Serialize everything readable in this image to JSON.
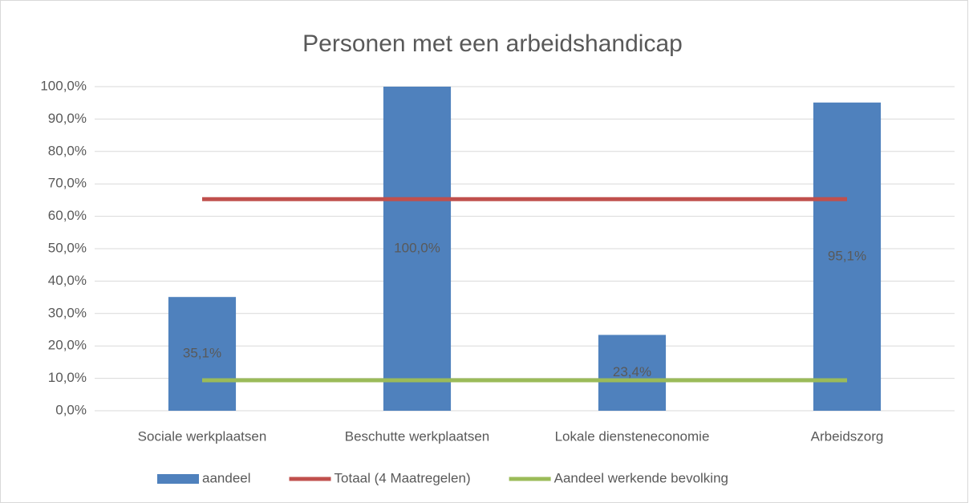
{
  "chart_data": {
    "type": "bar",
    "title": "Personen met een arbeidshandicap",
    "categories": [
      "Sociale werkplaatsen",
      "Beschutte werkplaatsen",
      "Lokale diensteneconomie",
      "Arbeidszorg"
    ],
    "series": [
      {
        "name": "aandeel",
        "type": "bar",
        "color": "#4f81bd",
        "values": [
          35.1,
          100,
          23.4,
          95.1
        ],
        "value_labels": [
          "35,1%",
          "100,0%",
          "23,4%",
          "95,1%"
        ]
      },
      {
        "name": "Totaal (4 Maatregelen)",
        "type": "line",
        "color": "#c0504d",
        "values": [
          65.3,
          65.3,
          65.3,
          65.3
        ]
      },
      {
        "name": "Aandeel werkende bevolking",
        "type": "line",
        "color": "#9bbb59",
        "values": [
          9.4,
          9.4,
          9.4,
          9.4
        ]
      }
    ],
    "ylim": [
      0,
      100
    ],
    "yticks": [
      {
        "value": 0,
        "label": "0,0%"
      },
      {
        "value": 10,
        "label": "10,0%"
      },
      {
        "value": 20,
        "label": "20,0%"
      },
      {
        "value": 30,
        "label": "30,0%"
      },
      {
        "value": 40,
        "label": "40,0%"
      },
      {
        "value": 50,
        "label": "50,0%"
      },
      {
        "value": 60,
        "label": "60,0%"
      },
      {
        "value": 70,
        "label": "70,0%"
      },
      {
        "value": 80,
        "label": "80,0%"
      },
      {
        "value": 90,
        "label": "90,0%"
      },
      {
        "value": 100,
        "label": "100,0%"
      }
    ],
    "grid": true,
    "legend": "bottom"
  }
}
